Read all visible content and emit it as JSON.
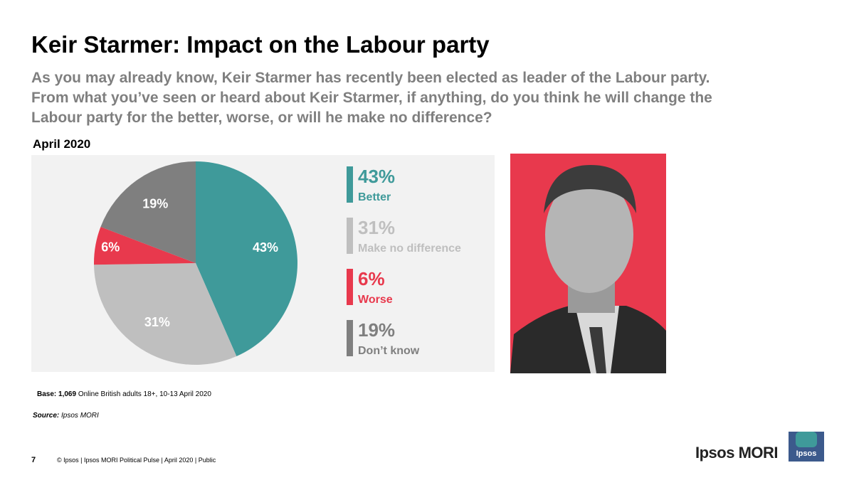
{
  "chart_data": {
    "type": "pie",
    "title": "Keir Starmer: Impact on the Labour party",
    "subtitle": "As you may already know, Keir Starmer has recently been elected as leader of the Labour party. From what you’ve seen or heard about Keir Starmer, if anything, do you think he will change the Labour party for the better, worse, or will he make no difference?",
    "chart_label": "April 2020",
    "categories": [
      "Better",
      "Make no difference",
      "Worse",
      "Don’t know"
    ],
    "values": [
      43,
      31,
      6,
      19
    ],
    "value_labels": [
      "43%",
      "31%",
      "6%",
      "19%"
    ],
    "colors": [
      "#3f9a9a",
      "#bfbfbf",
      "#e8394d",
      "#7f7f7f"
    ]
  },
  "slide": {
    "base_label": "Base:",
    "base_n": "1,069",
    "base_text": "Online British adults 18+, 10-13 April 2020",
    "source_label": "Source:",
    "source_text": "Ipsos MORI",
    "page_number": "7",
    "footer": "© Ipsos | Ipsos MORI Political Pulse | April 2020 | Public",
    "brand": "Ipsos MORI",
    "logo": "Ipsos"
  }
}
